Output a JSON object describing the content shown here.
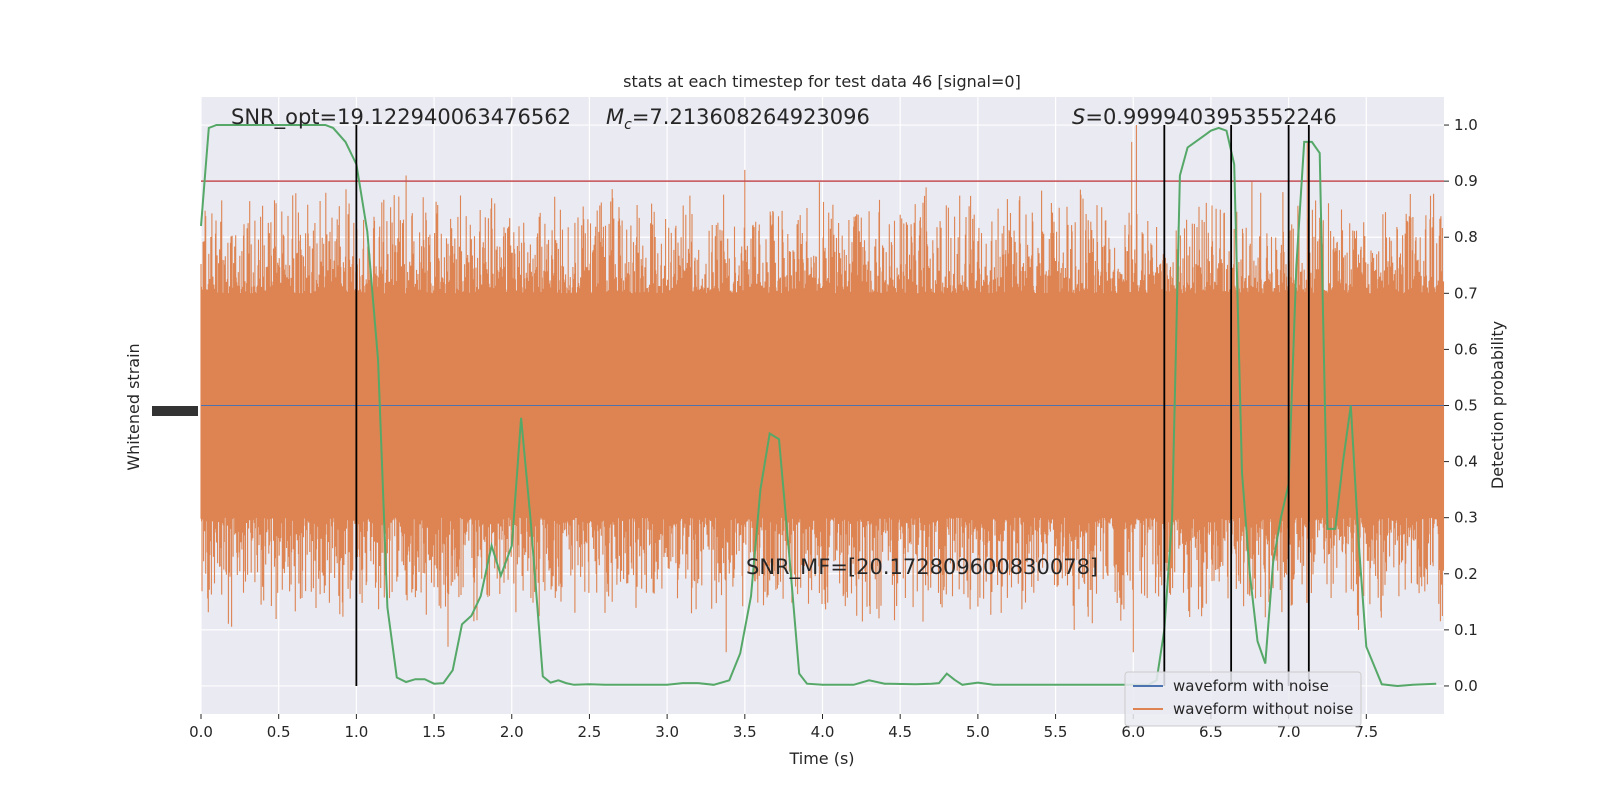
{
  "chart_data": {
    "type": "line",
    "title": "stats at each timestep for test data 46 [signal=0]",
    "xlabel": "Time (s)",
    "ylabel_left": "Whitened strain",
    "ylabel_right": "Detection probability",
    "xlim": [
      0.0,
      8.0
    ],
    "ylim_right": [
      -0.05,
      1.05
    ],
    "x_ticks": [
      "0.0",
      "0.5",
      "1.0",
      "1.5",
      "2.0",
      "2.5",
      "3.0",
      "3.5",
      "4.0",
      "4.5",
      "5.0",
      "5.5",
      "6.0",
      "6.5",
      "7.0",
      "7.5"
    ],
    "y_right_ticks": [
      "0.0",
      "0.1",
      "0.2",
      "0.3",
      "0.4",
      "0.5",
      "0.6",
      "0.7",
      "0.8",
      "0.9",
      "1.0"
    ],
    "grid": true,
    "legend_position": "bottom-right",
    "colors": {
      "background": "#eaeaf2",
      "noise": "#dd8452",
      "noiseless": "#4c72b0",
      "probability": "#55a868",
      "threshold": "#c44e52",
      "markers": "#000000"
    },
    "annotations": {
      "snr_opt": "SNR_opt=19.122940063476562",
      "mc_symbol": "M",
      "mc_sub": "c",
      "mc_value": "=7.213608264923096",
      "s_symbol": "S",
      "s_value": "=0.9999403953552246",
      "snr_mf": "SNR_MF=[20.172809600830078]"
    },
    "threshold": 0.9,
    "vertical_markers": [
      1.0,
      6.2,
      6.63,
      7.0,
      7.13
    ],
    "series": [
      {
        "name": "waveform with noise",
        "kind": "strain_noise_dense",
        "band_upper": 0.7,
        "band_lower": 0.3,
        "spike_top_examples": [
          0.91,
          0.92,
          1.0,
          0.97
        ],
        "spike_bottom_examples": [
          0.07,
          0.06,
          0.05
        ]
      },
      {
        "name": "waveform without noise",
        "kind": "flat"
      },
      {
        "name": "detection probability",
        "kind": "probability",
        "x": [
          0.0,
          0.05,
          0.1,
          0.2,
          0.3,
          0.4,
          0.5,
          0.6,
          0.7,
          0.8,
          0.85,
          0.93,
          1.0,
          1.07,
          1.14,
          1.2,
          1.26,
          1.32,
          1.38,
          1.44,
          1.5,
          1.56,
          1.62,
          1.68,
          1.74,
          1.8,
          1.87,
          1.93,
          2.0,
          2.06,
          2.12,
          2.2,
          2.25,
          2.3,
          2.35,
          2.4,
          2.5,
          2.6,
          2.8,
          3.0,
          3.1,
          3.2,
          3.3,
          3.4,
          3.47,
          3.54,
          3.6,
          3.66,
          3.72,
          3.79,
          3.85,
          3.9,
          4.0,
          4.2,
          4.3,
          4.4,
          4.6,
          4.7,
          4.75,
          4.8,
          4.85,
          4.9,
          5.0,
          5.1,
          5.2,
          5.3,
          5.5,
          5.8,
          6.0,
          6.1,
          6.15,
          6.2,
          6.25,
          6.3,
          6.35,
          6.45,
          6.5,
          6.55,
          6.6,
          6.65,
          6.7,
          6.75,
          6.8,
          6.85,
          6.9,
          6.95,
          7.0,
          7.05,
          7.1,
          7.15,
          7.2,
          7.25,
          7.3,
          7.35,
          7.4,
          7.45,
          7.5,
          7.6,
          7.7,
          7.8,
          7.95
        ],
        "y": [
          0.82,
          0.995,
          1.0,
          1.0,
          1.0,
          1.0,
          1.0,
          1.0,
          1.0,
          1.0,
          0.995,
          0.97,
          0.93,
          0.81,
          0.58,
          0.14,
          0.015,
          0.007,
          0.012,
          0.012,
          0.004,
          0.005,
          0.028,
          0.11,
          0.125,
          0.16,
          0.25,
          0.197,
          0.25,
          0.478,
          0.3,
          0.017,
          0.006,
          0.01,
          0.005,
          0.002,
          0.003,
          0.002,
          0.002,
          0.002,
          0.005,
          0.005,
          0.002,
          0.01,
          0.058,
          0.16,
          0.35,
          0.45,
          0.44,
          0.22,
          0.022,
          0.004,
          0.002,
          0.002,
          0.01,
          0.004,
          0.003,
          0.004,
          0.005,
          0.022,
          0.011,
          0.002,
          0.006,
          0.002,
          0.002,
          0.002,
          0.002,
          0.002,
          0.002,
          0.002,
          0.01,
          0.1,
          0.3,
          0.91,
          0.96,
          0.98,
          0.99,
          0.995,
          0.99,
          0.93,
          0.38,
          0.2,
          0.08,
          0.04,
          0.22,
          0.3,
          0.36,
          0.75,
          0.97,
          0.97,
          0.95,
          0.28,
          0.28,
          0.4,
          0.5,
          0.26,
          0.07,
          0.003,
          0.0,
          0.002,
          0.004
        ]
      }
    ]
  }
}
